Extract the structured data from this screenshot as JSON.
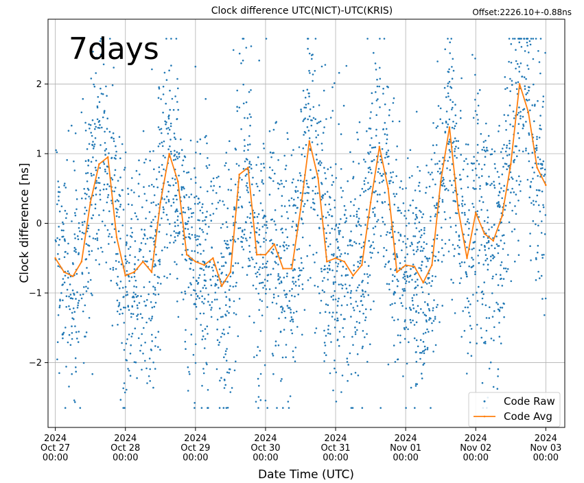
{
  "chart_data": {
    "type": "scatter",
    "title": "Clock difference UTC(NICT)-UTC(KRIS)",
    "offset_label": "Offset:2226.10+-0.88ns",
    "overlay_label": "7days",
    "xlabel": "Date Time (UTC)",
    "ylabel": "Clock difference [ns]",
    "xlim": [
      "2024-10-26T21:30",
      "2024-11-03T06:30"
    ],
    "ylim": [
      -2.93,
      2.93
    ],
    "grid": true,
    "legend_position": "bottom-right",
    "x_ticks": [
      {
        "value": "2024-10-27T00:00",
        "label": [
          "2024",
          "Oct 27",
          "00:00"
        ]
      },
      {
        "value": "2024-10-28T00:00",
        "label": [
          "2024",
          "Oct 28",
          "00:00"
        ]
      },
      {
        "value": "2024-10-29T00:00",
        "label": [
          "2024",
          "Oct 29",
          "00:00"
        ]
      },
      {
        "value": "2024-10-30T00:00",
        "label": [
          "2024",
          "Oct 30",
          "00:00"
        ]
      },
      {
        "value": "2024-10-31T00:00",
        "label": [
          "2024",
          "Oct 31",
          "00:00"
        ]
      },
      {
        "value": "2024-11-01T00:00",
        "label": [
          "2024",
          "Nov 01",
          "00:00"
        ]
      },
      {
        "value": "2024-11-02T00:00",
        "label": [
          "2024",
          "Nov 02",
          "00:00"
        ]
      },
      {
        "value": "2024-11-03T00:00",
        "label": [
          "2024",
          "Nov 03",
          "00:00"
        ]
      }
    ],
    "y_ticks": [
      {
        "value": -2,
        "label": "−2"
      },
      {
        "value": -1,
        "label": "−1"
      },
      {
        "value": 0,
        "label": "0"
      },
      {
        "value": 1,
        "label": "1"
      },
      {
        "value": 2,
        "label": "2"
      }
    ],
    "series": [
      {
        "name": "Code Raw",
        "style": "scatter",
        "color": "#1f77b4",
        "spread_ns": 0.9,
        "clip": [
          -2.65,
          2.65
        ]
      },
      {
        "name": "Code Avg",
        "style": "line",
        "color": "#ff7f0e",
        "x": [
          "2024-10-27T00:00",
          "2024-10-27T03:00",
          "2024-10-27T06:00",
          "2024-10-27T09:00",
          "2024-10-27T12:00",
          "2024-10-27T15:00",
          "2024-10-27T18:00",
          "2024-10-27T21:00",
          "2024-10-28T00:00",
          "2024-10-28T03:00",
          "2024-10-28T06:00",
          "2024-10-28T09:00",
          "2024-10-28T12:00",
          "2024-10-28T15:00",
          "2024-10-28T18:00",
          "2024-10-28T21:00",
          "2024-10-29T00:00",
          "2024-10-29T03:00",
          "2024-10-29T06:00",
          "2024-10-29T09:00",
          "2024-10-29T12:00",
          "2024-10-29T15:00",
          "2024-10-29T18:00",
          "2024-10-29T21:00",
          "2024-10-30T00:00",
          "2024-10-30T03:00",
          "2024-10-30T06:00",
          "2024-10-30T09:00",
          "2024-10-30T12:00",
          "2024-10-30T15:00",
          "2024-10-30T18:00",
          "2024-10-30T21:00",
          "2024-10-31T00:00",
          "2024-10-31T03:00",
          "2024-10-31T06:00",
          "2024-10-31T09:00",
          "2024-10-31T12:00",
          "2024-10-31T15:00",
          "2024-10-31T18:00",
          "2024-10-31T21:00",
          "2024-11-01T00:00",
          "2024-11-01T03:00",
          "2024-11-01T06:00",
          "2024-11-01T09:00",
          "2024-11-01T12:00",
          "2024-11-01T15:00",
          "2024-11-01T18:00",
          "2024-11-01T21:00",
          "2024-11-02T00:00",
          "2024-11-02T03:00",
          "2024-11-02T06:00",
          "2024-11-02T09:00",
          "2024-11-02T12:00",
          "2024-11-02T15:00",
          "2024-11-02T18:00",
          "2024-11-02T21:00",
          "2024-11-03T00:00"
        ],
        "values": [
          -0.5,
          -0.7,
          -0.76,
          -0.55,
          0.3,
          0.85,
          0.95,
          -0.2,
          -0.75,
          -0.7,
          -0.55,
          -0.7,
          0.3,
          1.0,
          0.6,
          -0.45,
          -0.55,
          -0.6,
          -0.5,
          -0.9,
          -0.7,
          0.7,
          0.8,
          -0.45,
          -0.45,
          -0.3,
          -0.65,
          -0.65,
          0.2,
          1.18,
          0.65,
          -0.55,
          -0.5,
          -0.55,
          -0.75,
          -0.6,
          0.3,
          1.1,
          0.5,
          -0.7,
          -0.6,
          -0.62,
          -0.85,
          -0.6,
          0.6,
          1.38,
          0.2,
          -0.5,
          0.15,
          -0.15,
          -0.25,
          0.1,
          0.85,
          2.0,
          1.6,
          0.8,
          0.55
        ]
      }
    ]
  }
}
